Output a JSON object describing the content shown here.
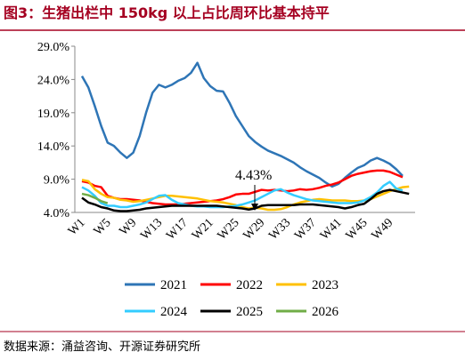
{
  "chart_data": {
    "type": "line",
    "title": "图3：生猪出栏中 150kg 以上占比周环比基本持平",
    "source": "数据来源：涌益咨询、开源证券研究所",
    "annotation": "4.43%",
    "categories": [
      "W1",
      null,
      null,
      null,
      "W5",
      null,
      null,
      null,
      "W9",
      null,
      null,
      null,
      "W13",
      null,
      null,
      null,
      "W17",
      null,
      null,
      null,
      "W21",
      null,
      null,
      null,
      "W25",
      null,
      null,
      null,
      "W29",
      null,
      null,
      null,
      "W33",
      null,
      null,
      null,
      "W37",
      null,
      null,
      null,
      "W41",
      null,
      null,
      null,
      "W45",
      null,
      null,
      null,
      "W49",
      null,
      null,
      null
    ],
    "ylim": [
      4,
      29
    ],
    "yticks": [
      {
        "value": 4,
        "label": "4.0%"
      },
      {
        "value": 9,
        "label": "9.0%"
      },
      {
        "value": 14,
        "label": "14.0%"
      },
      {
        "value": 19,
        "label": "19.0%"
      },
      {
        "value": 24,
        "label": "24.0%"
      },
      {
        "value": 29,
        "label": "29.0%"
      }
    ],
    "series": [
      {
        "name": "2021",
        "color": "#2e75b6",
        "values": [
          24.5,
          22.8,
          20,
          17,
          14.5,
          14,
          13,
          12.2,
          13,
          15.5,
          19,
          22,
          23.2,
          22.8,
          23.2,
          23.8,
          24.2,
          25,
          26.5,
          24.2,
          23,
          22.3,
          22.2,
          20.5,
          18.5,
          17,
          15.5,
          14.6,
          13.9,
          13.3,
          12.9,
          12.5,
          12,
          11.5,
          10.8,
          10.2,
          9.7,
          9.2,
          8.5,
          7.9,
          8.3,
          9.2,
          10,
          10.7,
          11.1,
          11.8,
          12.2,
          11.8,
          11.3,
          10.5,
          9.5,
          null
        ]
      },
      {
        "name": "2022",
        "color": "#ff0000",
        "values": [
          8.7,
          8.5,
          8,
          7.8,
          6.5,
          6.2,
          6,
          6,
          5.9,
          5.8,
          5.6,
          5.4,
          5.3,
          5.2,
          5.2,
          5.2,
          5.3,
          5.4,
          5.5,
          5.6,
          5.7,
          5.8,
          6,
          6.3,
          6.7,
          6.8,
          6.8,
          7.1,
          7.4,
          7.3,
          7.4,
          7.3,
          7.2,
          7.3,
          7.5,
          7.4,
          7.5,
          7.7,
          8,
          8.2,
          8.5,
          9,
          9.5,
          9.8,
          10,
          10.2,
          10.3,
          10.3,
          10.1,
          9.7,
          9.3,
          null
        ]
      },
      {
        "name": "2023",
        "color": "#ffc000",
        "values": [
          8.9,
          8.7,
          7.5,
          6.8,
          6.3,
          6.2,
          5.9,
          5.8,
          5.6,
          5.7,
          5.9,
          6.1,
          6.3,
          6.5,
          6.5,
          6.4,
          6.3,
          6.2,
          6.1,
          5.9,
          5.7,
          5.6,
          5.5,
          5.3,
          5.1,
          4.8,
          4.6,
          4.7,
          4.6,
          4.4,
          4.4,
          4.5,
          4.8,
          5.2,
          5.5,
          5.7,
          5.9,
          6,
          5.9,
          5.8,
          5.8,
          5.8,
          5.7,
          5.7,
          5.8,
          6,
          6.4,
          6.8,
          7.2,
          7.5,
          7.8,
          7.9
        ]
      },
      {
        "name": "2024",
        "color": "#33ccff",
        "values": [
          7.8,
          7.3,
          6.5,
          5.4,
          5,
          5,
          4.8,
          4.8,
          5,
          5.2,
          5.5,
          6,
          6.5,
          6.6,
          5.9,
          5.4,
          5.2,
          5,
          4.9,
          4.9,
          4.8,
          4.8,
          4.8,
          4.9,
          5,
          5.2,
          5.5,
          5.8,
          6.3,
          6.8,
          7.3,
          7.5,
          7,
          6.6,
          6.3,
          6,
          5.8,
          5.7,
          5.6,
          5.5,
          5.4,
          5.4,
          5.4,
          5.5,
          5.8,
          6.3,
          7,
          8,
          8.6,
          7.6,
          7.3,
          null
        ]
      },
      {
        "name": "2025",
        "color": "#000000",
        "values": [
          6.2,
          5.5,
          5.2,
          4.8,
          4.6,
          4.3,
          4.2,
          4.2,
          4.3,
          4.4,
          4.6,
          4.7,
          4.8,
          4.9,
          5,
          5,
          5,
          5,
          5,
          5,
          5,
          5,
          4.9,
          4.8,
          4.7,
          4.6,
          4.43,
          4.6,
          5,
          5.1,
          5.1,
          5.1,
          5.1,
          5.1,
          5.2,
          5.2,
          5.2,
          5.1,
          5,
          4.9,
          4.8,
          4.6,
          4.8,
          5.1,
          5.3,
          6,
          6.8,
          7.2,
          7.4,
          7.2,
          7,
          6.8
        ]
      },
      {
        "name": "2026",
        "color": "#70ad47",
        "values": [
          6.8,
          6.6,
          6.2,
          5.7,
          5.4,
          null,
          null,
          null,
          null,
          null,
          null,
          null,
          null,
          null,
          null,
          null,
          null,
          null,
          null,
          null,
          null,
          null,
          null,
          null,
          null,
          null,
          null,
          null,
          null,
          null,
          null,
          null,
          null,
          null,
          null,
          null,
          null,
          null,
          null,
          null,
          null,
          null,
          null,
          null,
          null,
          null,
          null,
          null,
          null,
          null,
          null,
          null
        ]
      }
    ]
  }
}
